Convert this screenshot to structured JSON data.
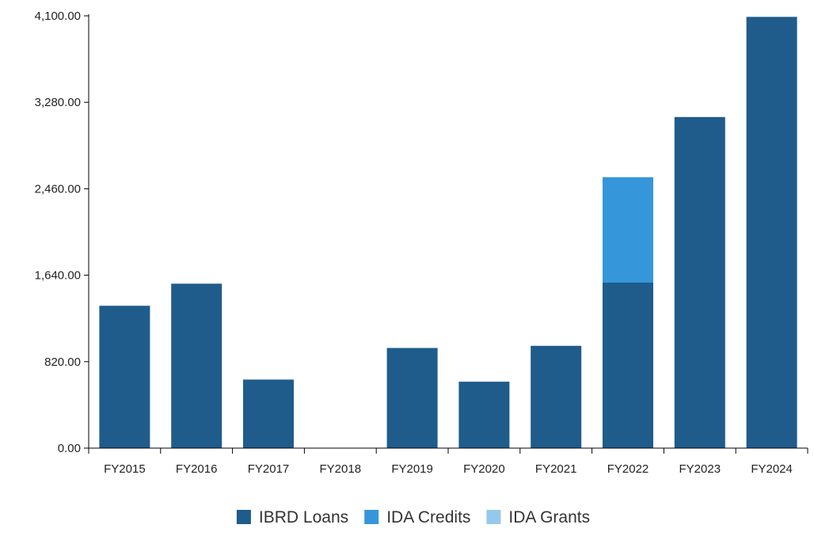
{
  "chart_data": {
    "type": "bar",
    "stacked": true,
    "title": "",
    "xlabel": "",
    "ylabel": "",
    "categories": [
      "FY2015",
      "FY2016",
      "FY2017",
      "FY2018",
      "FY2019",
      "FY2020",
      "FY2021",
      "FY2022",
      "FY2023",
      "FY2024"
    ],
    "series": [
      {
        "name": "IBRD Loans",
        "color": "#1f5c8b",
        "values": [
          1350,
          1560,
          650,
          0,
          950,
          630,
          970,
          1570,
          3140,
          4090
        ]
      },
      {
        "name": "IDA Credits",
        "color": "#3597da",
        "values": [
          0,
          0,
          0,
          0,
          0,
          0,
          0,
          1000,
          0,
          0
        ]
      },
      {
        "name": "IDA Grants",
        "color": "#96c8ee",
        "values": [
          0,
          0,
          0,
          0,
          0,
          0,
          0,
          0,
          0,
          0
        ]
      }
    ],
    "ylim": [
      0,
      4100
    ],
    "yticks": [
      "0.00",
      "820.00",
      "1,640.00",
      "2,460.00",
      "3,280.00",
      "4,100.00"
    ],
    "grid": false,
    "legend": "bottom-center"
  }
}
